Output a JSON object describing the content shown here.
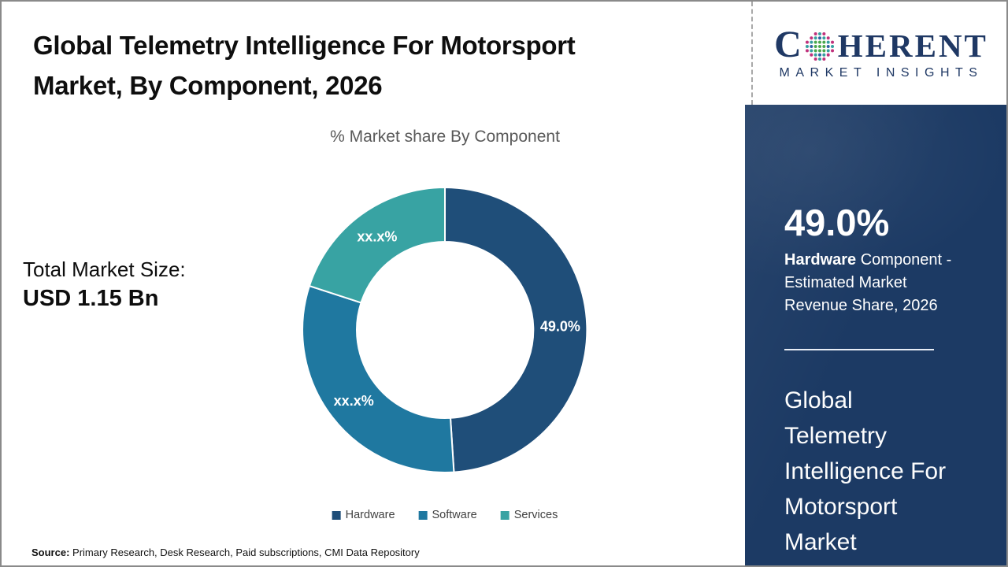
{
  "title": {
    "lines": [
      "Global Telemetry Intelligence For Motorsport",
      "Market, By Component, 2026"
    ]
  },
  "subtitle": "% Market share By Component",
  "market_size": {
    "label": "Total Market Size:",
    "value": "USD 1.15 Bn"
  },
  "source": {
    "label": "Source:",
    "text": " Primary Research, Desk Research, Paid subscriptions, CMI Data Repository"
  },
  "chart_data": {
    "type": "pie",
    "subtype": "donut",
    "title": "% Market share By Component",
    "categories": [
      "Hardware",
      "Software",
      "Services"
    ],
    "values": [
      49.0,
      31.0,
      20.0
    ],
    "slice_labels": [
      "49.0%",
      "xx.x%",
      "xx.x%"
    ],
    "colors": [
      "#1f4e79",
      "#1f78a0",
      "#38a3a3"
    ],
    "start_angle_deg": 0,
    "direction": "clockwise",
    "inner_radius_ratio": 0.62,
    "legend_position": "bottom",
    "values_note": "Software and Services slice values are masked as xx.x% in the image; numbers estimated from arc angles"
  },
  "sidebar": {
    "logo": {
      "c": "C",
      "rest": "HERENT",
      "subtitle": "MARKET INSIGHTS"
    },
    "stat": {
      "value": "49.0%",
      "desc_bold": "Hardware",
      "desc_rest": " Component - Estimated Market Revenue Share, 2026"
    },
    "heading_lines": [
      "Global",
      "Telemetry",
      "Intelligence For",
      "Motorsport",
      "Market"
    ]
  },
  "colors": {
    "panel_bg": "#1c3a64",
    "logo_navy": "#1f3864",
    "title_text": "#0e0e0e",
    "subtitle_text": "#595959"
  }
}
